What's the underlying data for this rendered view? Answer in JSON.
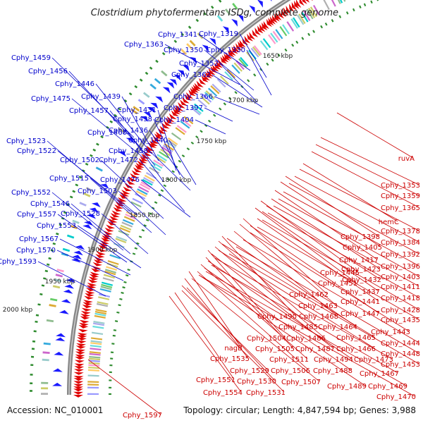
{
  "title": "Clostridium phytofermentans ISDg, complete genome",
  "accession": "Accession: NC_010001",
  "summary": "Topology: circular; Length: 4,847,594 bp; Genes: 3,988",
  "colors": {
    "backbone": "#888888",
    "forward_gene": "#1a1aff",
    "reverse_gene": "#e00000",
    "gc_skew": "#2e8b2e",
    "label_blue": "#0000cc",
    "label_red": "#cc0000"
  },
  "scale_labels": [
    "1650 kbp",
    "1700 kbp",
    "1750 kbp",
    "1800 kbp",
    "1850 kbp",
    "1900 kbp",
    "1950 kbp",
    "2000 kbp"
  ],
  "outer_labels": [
    "Cphy_1459",
    "Cphy_1456",
    "Cphy_1446",
    "Cphy_1439",
    "Cphy_1475",
    "Cphy_1457",
    "Cphy_1431",
    "Cphy_1438",
    "Cphy_1460",
    "Cphy_1436",
    "Cphy_1440",
    "Cphy_1458",
    "Cphy_1523",
    "Cphy_1522",
    "Cphy_1502",
    "Cphy_1472",
    "Cphy_1476",
    "Cphy_1515",
    "Cphy_1503",
    "Cphy_1552",
    "Cphy_1546",
    "Cphy_1528",
    "Cphy_1557",
    "Cphy_1553",
    "Cphy_1567",
    "Cphy_1570",
    "Cphy_1593",
    "Cphy_1341",
    "Cphy_1319",
    "Cphy_1363",
    "Cphy_1350",
    "Cphy_1330",
    "Cphy_1352",
    "Cphy_1362",
    "Cphy_1366",
    "Cphy_1397",
    "Cphy_1404"
  ],
  "inner_labels": [
    "ruvA",
    "Cphy_1353",
    "Cphy_1359",
    "Cphy_1365",
    "hemC",
    "Cphy_1378",
    "Cphy_1398",
    "Cphy_1384",
    "Cphy_1405",
    "Cphy_1392",
    "Cphy_1417",
    "Cphy_1396",
    "Cphy_1445",
    "Cphy_1423",
    "Cphy_1403",
    "Cphy_1451",
    "Cphy_1432",
    "Cphy_1411",
    "Cphy_1437",
    "Cphy_1462",
    "Cphy_1418",
    "Cphy_1441",
    "Cphy_1463",
    "Cphy_1428",
    "Cphy_1447",
    "Cphy_1435",
    "Cphy_1490",
    "Cphy_1468",
    "Cphy_1485",
    "Cphy_1464",
    "Cphy_1443",
    "Cphy_1504",
    "Cphy_1486",
    "Cphy_1465",
    "Cphy_1444",
    "Cphy_1505",
    "Cphy_1487",
    "Cphy_1466",
    "Cphy_1448",
    "nagB",
    "Cphy_1511",
    "Cphy_1494",
    "Cphy_1473",
    "Cphy_1453",
    "Cphy_1535",
    "Cphy_1506",
    "Cphy_1488",
    "Cphy_1467",
    "Cphy_1529",
    "Cphy_1507",
    "Cphy_1489",
    "Cphy_1469",
    "Cphy_1551",
    "Cphy_1530",
    "Cphy_1470",
    "Cphy_1554",
    "Cphy_1531",
    "Cphy_1597"
  ]
}
